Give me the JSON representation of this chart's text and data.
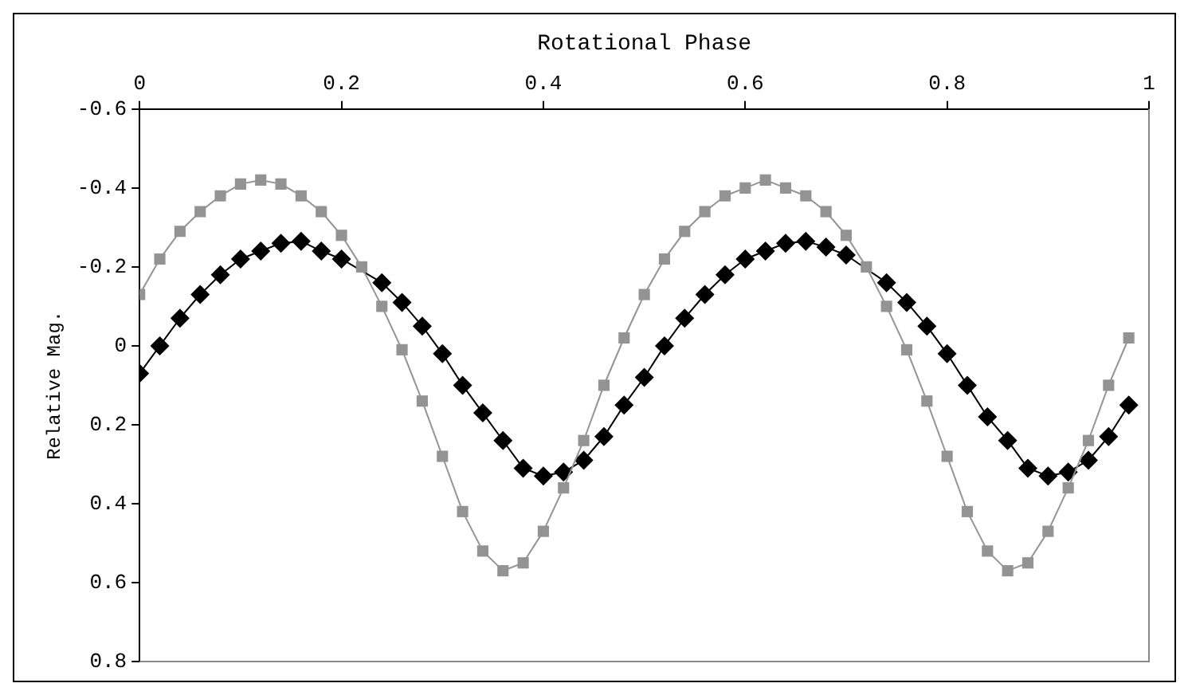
{
  "chart_data": {
    "type": "line",
    "xlabel": "Rotational Phase",
    "ylabel": "Relative Mag.",
    "xlim": [
      0,
      1
    ],
    "xticks": [
      0,
      0.2,
      0.4,
      0.6,
      0.8,
      1
    ],
    "ylim": [
      0.8,
      -0.6
    ],
    "yticks": [
      -0.6,
      -0.4,
      -0.2,
      0,
      0.2,
      0.4,
      0.6,
      0.8
    ],
    "x": [
      0,
      0.02,
      0.04,
      0.06,
      0.08,
      0.1,
      0.12,
      0.14,
      0.16,
      0.18,
      0.2,
      0.22,
      0.24,
      0.26,
      0.28,
      0.3,
      0.32,
      0.34,
      0.36,
      0.38,
      0.4,
      0.42,
      0.44,
      0.46,
      0.48,
      0.5,
      0.52,
      0.54,
      0.56,
      0.58,
      0.6,
      0.62,
      0.64,
      0.66,
      0.68,
      0.7,
      0.72,
      0.74,
      0.76,
      0.78,
      0.8,
      0.82,
      0.84,
      0.86,
      0.88,
      0.9,
      0.92,
      0.94,
      0.96,
      0.98
    ],
    "series": [
      {
        "color": "#939393",
        "marker": "square",
        "values": [
          -0.13,
          -0.22,
          -0.29,
          -0.34,
          -0.38,
          -0.41,
          -0.42,
          -0.41,
          -0.38,
          -0.34,
          -0.28,
          -0.2,
          -0.1,
          0.01,
          0.14,
          0.28,
          0.42,
          0.52,
          0.57,
          0.55,
          0.47,
          0.36,
          0.24,
          0.1,
          -0.02,
          -0.13,
          -0.22,
          -0.29,
          -0.34,
          -0.38,
          -0.4,
          -0.42,
          -0.4,
          -0.38,
          -0.34,
          -0.28,
          -0.2,
          -0.1,
          0.01,
          0.14,
          0.28,
          0.42,
          0.52,
          0.57,
          0.55,
          0.47,
          0.36,
          0.24,
          0.1,
          -0.02
        ]
      },
      {
        "color": "#000000",
        "marker": "diamond",
        "values": [
          0.07,
          0,
          -0.07,
          -0.13,
          -0.18,
          -0.22,
          -0.24,
          -0.26,
          -0.265,
          -0.24,
          -0.22,
          null,
          -0.16,
          -0.11,
          -0.05,
          0.02,
          0.1,
          0.17,
          0.24,
          0.31,
          0.33,
          0.32,
          0.29,
          0.23,
          0.15,
          0.08,
          0,
          -0.07,
          -0.13,
          -0.18,
          -0.22,
          -0.24,
          -0.26,
          -0.265,
          -0.25,
          -0.23,
          null,
          -0.16,
          -0.11,
          -0.05,
          0.02,
          0.1,
          0.18,
          0.24,
          0.31,
          0.33,
          0.32,
          0.29,
          0.23,
          0.15
        ]
      }
    ],
    "grid": false,
    "legend": false,
    "line_style": "solid"
  }
}
